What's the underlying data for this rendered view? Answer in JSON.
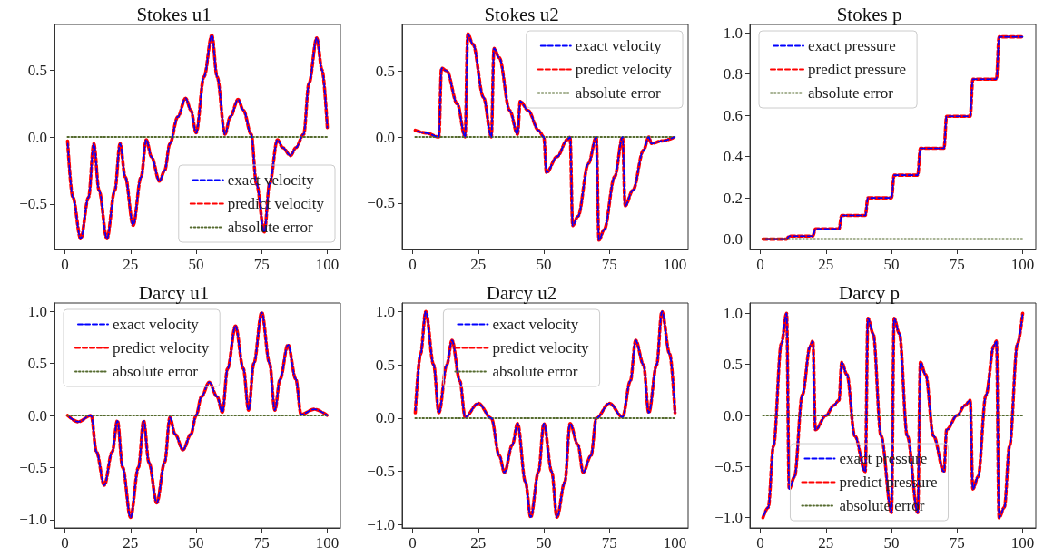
{
  "chart_data": [
    {
      "type": "line",
      "title": "Stokes u1",
      "legend": "bottom right",
      "xlim": [
        -4,
        105
      ],
      "xticks": [
        0,
        25,
        50,
        75,
        100
      ],
      "ylim": [
        -0.84,
        0.84
      ],
      "yticks": [
        {
          "value": -0.5,
          "label": "−0.5"
        },
        {
          "value": 0,
          "label": "0.0"
        },
        {
          "value": 0.5,
          "label": "0.5"
        }
      ],
      "x": [
        1,
        3,
        6,
        9,
        11,
        13,
        16,
        19,
        21,
        23,
        26,
        29,
        31,
        33,
        36,
        38,
        40,
        43,
        46,
        48,
        50,
        53,
        56,
        58,
        61,
        63,
        66,
        68,
        71,
        73,
        76,
        78,
        81,
        83,
        86,
        88,
        91,
        93,
        96,
        98,
        100
      ],
      "series": [
        {
          "name": "exact velocity",
          "color": "#0000ff",
          "line_style": "dashed",
          "values": [
            -0.03,
            -0.45,
            -0.76,
            -0.45,
            -0.05,
            -0.4,
            -0.76,
            -0.4,
            -0.05,
            -0.3,
            -0.66,
            -0.3,
            -0.02,
            -0.15,
            -0.33,
            -0.25,
            -0.05,
            0.15,
            0.29,
            0.2,
            0.03,
            0.45,
            0.76,
            0.45,
            0.02,
            0.15,
            0.28,
            0.2,
            0.02,
            -0.35,
            -0.71,
            -0.35,
            -0.02,
            -0.08,
            -0.14,
            -0.08,
            0.02,
            0.4,
            0.74,
            0.5,
            0.07
          ]
        },
        {
          "name": "predict velocity",
          "color": "#ff0000",
          "line_style": "dashed",
          "values": [
            -0.03,
            -0.45,
            -0.76,
            -0.45,
            -0.05,
            -0.4,
            -0.76,
            -0.4,
            -0.05,
            -0.3,
            -0.66,
            -0.3,
            -0.02,
            -0.15,
            -0.33,
            -0.25,
            -0.05,
            0.15,
            0.29,
            0.2,
            0.03,
            0.45,
            0.76,
            0.45,
            0.02,
            0.15,
            0.28,
            0.2,
            0.02,
            -0.35,
            -0.71,
            -0.35,
            -0.02,
            -0.08,
            -0.14,
            -0.08,
            0.02,
            0.4,
            0.74,
            0.5,
            0.07
          ]
        },
        {
          "name": "absolute error",
          "color": "#556b2f",
          "line_style": "dotted",
          "values": [
            0,
            0,
            0,
            0,
            0,
            0,
            0,
            0,
            0,
            0,
            0,
            0,
            0,
            0,
            0,
            0,
            0,
            0,
            0,
            0,
            0,
            0,
            0,
            0,
            0,
            0,
            0,
            0,
            0,
            0,
            0,
            0,
            0,
            0,
            0,
            0,
            0,
            0,
            0,
            0,
            0
          ]
        }
      ]
    },
    {
      "type": "line",
      "title": "Stokes u2",
      "legend": "top right",
      "xlim": [
        -4,
        105
      ],
      "xticks": [
        0,
        25,
        50,
        75,
        100
      ],
      "ylim": [
        -0.85,
        0.85
      ],
      "yticks": [
        {
          "value": -0.5,
          "label": "−0.5"
        },
        {
          "value": 0,
          "label": "0.0"
        },
        {
          "value": 0.5,
          "label": "0.5"
        }
      ],
      "x": [
        1,
        5,
        10,
        11,
        13,
        17,
        20,
        21,
        23,
        27,
        30,
        31,
        33,
        37,
        40,
        41,
        44,
        48,
        50,
        51,
        55,
        59,
        60,
        61,
        63,
        67,
        70,
        71,
        73,
        77,
        80,
        81,
        84,
        88,
        90,
        91,
        95,
        100
      ],
      "series": [
        {
          "name": "exact velocity",
          "color": "#0000ff",
          "line_style": "dashed",
          "values": [
            0.05,
            0.03,
            0,
            0.52,
            0.5,
            0.25,
            0,
            0.78,
            0.7,
            0.3,
            0,
            0.67,
            0.6,
            0.2,
            0.02,
            0.27,
            0.2,
            0.05,
            0,
            -0.27,
            -0.15,
            -0.02,
            0,
            -0.67,
            -0.6,
            -0.2,
            0,
            -0.78,
            -0.7,
            -0.3,
            0,
            -0.52,
            -0.4,
            -0.1,
            0,
            -0.05,
            -0.03,
            0
          ]
        },
        {
          "name": "predict velocity",
          "color": "#ff0000",
          "line_style": "dashed",
          "values": [
            0.05,
            0.03,
            0,
            0.52,
            0.5,
            0.25,
            0,
            0.78,
            0.7,
            0.3,
            0,
            0.67,
            0.6,
            0.2,
            0.02,
            0.27,
            0.2,
            0.05,
            0,
            -0.27,
            -0.15,
            -0.02,
            0,
            -0.67,
            -0.6,
            -0.2,
            0,
            -0.78,
            -0.7,
            -0.3,
            0,
            -0.52,
            -0.4,
            -0.1,
            0,
            -0.05,
            -0.03,
            0
          ]
        },
        {
          "name": "absolute error",
          "color": "#556b2f",
          "line_style": "dotted",
          "values": [
            0,
            0,
            0,
            0,
            0,
            0,
            0,
            0,
            0,
            0,
            0,
            0,
            0,
            0,
            0,
            0,
            0,
            0,
            0,
            0,
            0,
            0,
            0,
            0,
            0,
            0,
            0,
            0,
            0,
            0,
            0,
            0,
            0,
            0,
            0,
            0,
            0,
            0
          ]
        }
      ]
    },
    {
      "type": "line",
      "title": "Stokes p",
      "legend": "top left",
      "xlim": [
        -4,
        105
      ],
      "xticks": [
        0,
        25,
        50,
        75,
        100
      ],
      "ylim": [
        -0.05,
        1.04
      ],
      "yticks": [
        {
          "value": 0,
          "label": "0.0"
        },
        {
          "value": 0.2,
          "label": "0.2"
        },
        {
          "value": 0.4,
          "label": "0.4"
        },
        {
          "value": 0.6,
          "label": "0.6"
        },
        {
          "value": 0.8,
          "label": "0.8"
        },
        {
          "value": 1,
          "label": "1.0"
        }
      ],
      "x": [
        1,
        10,
        11,
        20,
        21,
        30,
        31,
        40,
        41,
        50,
        51,
        60,
        61,
        70,
        71,
        80,
        81,
        90,
        91,
        100
      ],
      "series": [
        {
          "name": "exact pressure",
          "color": "#0000ff",
          "line_style": "dashed",
          "values": [
            0,
            0,
            0.015,
            0.015,
            0.05,
            0.05,
            0.115,
            0.115,
            0.2,
            0.2,
            0.31,
            0.31,
            0.44,
            0.44,
            0.595,
            0.595,
            0.775,
            0.775,
            0.98,
            0.98
          ]
        },
        {
          "name": "predict pressure",
          "color": "#ff0000",
          "line_style": "dashed",
          "values": [
            0,
            0,
            0.015,
            0.015,
            0.05,
            0.05,
            0.115,
            0.115,
            0.2,
            0.2,
            0.31,
            0.31,
            0.44,
            0.44,
            0.595,
            0.595,
            0.775,
            0.775,
            0.98,
            0.98
          ]
        },
        {
          "name": "absolute error",
          "color": "#556b2f",
          "line_style": "dotted",
          "values": [
            0,
            0,
            0,
            0,
            0,
            0,
            0,
            0,
            0,
            0,
            0,
            0,
            0,
            0,
            0,
            0,
            0,
            0,
            0,
            0
          ]
        }
      ]
    },
    {
      "type": "line",
      "title": "Darcy u1",
      "legend": "top left",
      "xlim": [
        -4,
        105
      ],
      "xticks": [
        0,
        25,
        50,
        75,
        100
      ],
      "ylim": [
        -1.08,
        1.08
      ],
      "yticks": [
        {
          "value": -1,
          "label": "−1.0"
        },
        {
          "value": -0.5,
          "label": "−0.5"
        },
        {
          "value": 0,
          "label": "0.0"
        },
        {
          "value": 0.5,
          "label": "0.5"
        },
        {
          "value": 1,
          "label": "1.0"
        }
      ],
      "x": [
        1,
        5,
        10,
        12,
        15,
        18,
        20,
        22,
        25,
        28,
        30,
        32,
        35,
        38,
        40,
        42,
        45,
        48,
        50,
        52,
        55,
        58,
        60,
        62,
        65,
        68,
        70,
        72,
        75,
        78,
        80,
        82,
        85,
        88,
        90,
        95,
        100
      ],
      "series": [
        {
          "name": "exact velocity",
          "color": "#0000ff",
          "line_style": "dashed",
          "values": [
            0,
            -0.06,
            0,
            -0.35,
            -0.67,
            -0.35,
            -0.05,
            -0.5,
            -0.98,
            -0.5,
            -0.05,
            -0.45,
            -0.84,
            -0.45,
            -0.02,
            -0.18,
            -0.33,
            -0.18,
            0,
            0.18,
            0.32,
            0.18,
            0.03,
            0.45,
            0.86,
            0.45,
            0.05,
            0.5,
            0.99,
            0.5,
            0.05,
            0.35,
            0.68,
            0.35,
            0.01,
            0.06,
            0
          ]
        },
        {
          "name": "predict velocity",
          "color": "#ff0000",
          "line_style": "dashed",
          "values": [
            0,
            -0.06,
            0,
            -0.35,
            -0.67,
            -0.35,
            -0.05,
            -0.5,
            -0.98,
            -0.5,
            -0.05,
            -0.45,
            -0.84,
            -0.45,
            -0.02,
            -0.18,
            -0.33,
            -0.18,
            0,
            0.18,
            0.32,
            0.18,
            0.03,
            0.45,
            0.86,
            0.45,
            0.05,
            0.5,
            0.99,
            0.5,
            0.05,
            0.35,
            0.68,
            0.35,
            0.01,
            0.06,
            0
          ]
        },
        {
          "name": "absolute error",
          "color": "#556b2f",
          "line_style": "dotted",
          "values": [
            0,
            0,
            0,
            0,
            0,
            0,
            0,
            0,
            0,
            0,
            0,
            0,
            0,
            0,
            0,
            0,
            0,
            0,
            0,
            0,
            0,
            0,
            0,
            0,
            0,
            0,
            0,
            0,
            0,
            0,
            0,
            0,
            0,
            0,
            0,
            0,
            0
          ]
        }
      ]
    },
    {
      "type": "line",
      "title": "Darcy u2",
      "legend": "top",
      "xlim": [
        -4,
        105
      ],
      "xticks": [
        0,
        25,
        50,
        75,
        100
      ],
      "ylim": [
        -1.03,
        1.08
      ],
      "yticks": [
        {
          "value": -1,
          "label": "−1.0"
        },
        {
          "value": -0.5,
          "label": "−0.5"
        },
        {
          "value": 0,
          "label": "0.0"
        },
        {
          "value": 0.5,
          "label": "0.5"
        },
        {
          "value": 1,
          "label": "1.0"
        }
      ],
      "x": [
        1,
        3,
        5,
        8,
        10,
        13,
        15,
        18,
        20,
        25,
        30,
        33,
        35,
        38,
        40,
        43,
        45,
        48,
        50,
        53,
        55,
        58,
        60,
        63,
        65,
        68,
        70,
        75,
        80,
        83,
        85,
        88,
        90,
        93,
        95,
        98,
        100
      ],
      "series": [
        {
          "name": "exact velocity",
          "color": "#0000ff",
          "line_style": "dashed",
          "values": [
            0.05,
            0.6,
            1,
            0.5,
            0.05,
            0.5,
            0.73,
            0.35,
            0.01,
            0.14,
            0,
            -0.35,
            -0.51,
            -0.25,
            -0.05,
            -0.6,
            -0.93,
            -0.5,
            -0.05,
            -0.5,
            -0.93,
            -0.6,
            -0.05,
            -0.25,
            -0.51,
            -0.35,
            0,
            0.14,
            0.01,
            0.35,
            0.73,
            0.5,
            0.05,
            0.5,
            1,
            0.6,
            0.05
          ]
        },
        {
          "name": "predict velocity",
          "color": "#ff0000",
          "line_style": "dashed",
          "values": [
            0.05,
            0.6,
            1,
            0.5,
            0.05,
            0.5,
            0.73,
            0.35,
            0.01,
            0.14,
            0,
            -0.35,
            -0.51,
            -0.25,
            -0.05,
            -0.6,
            -0.93,
            -0.5,
            -0.05,
            -0.5,
            -0.93,
            -0.6,
            -0.05,
            -0.25,
            -0.51,
            -0.35,
            0,
            0.14,
            0.01,
            0.35,
            0.73,
            0.5,
            0.05,
            0.5,
            1,
            0.6,
            0.05
          ]
        },
        {
          "name": "absolute error",
          "color": "#556b2f",
          "line_style": "dotted",
          "values": [
            0,
            0,
            0,
            0,
            0,
            0,
            0,
            0,
            0,
            0,
            0,
            0,
            0,
            0,
            0,
            0,
            0,
            0,
            0,
            0,
            0,
            0,
            0,
            0,
            0,
            0,
            0,
            0,
            0,
            0,
            0,
            0,
            0,
            0,
            0,
            0,
            0
          ]
        }
      ]
    },
    {
      "type": "line",
      "title": "Darcy p",
      "legend": "bottom",
      "xlim": [
        -4,
        105
      ],
      "xticks": [
        0,
        25,
        50,
        75,
        100
      ],
      "ylim": [
        -1.1,
        1.1
      ],
      "yticks": [
        {
          "value": -1,
          "label": "−1.0"
        },
        {
          "value": -0.5,
          "label": "−0.5"
        },
        {
          "value": 0,
          "label": "0.0"
        },
        {
          "value": 0.5,
          "label": "0.5"
        },
        {
          "value": 1,
          "label": "1.0"
        }
      ],
      "x": [
        1,
        3,
        5,
        8,
        10,
        11,
        13,
        16,
        19,
        20,
        21,
        25,
        28,
        30,
        31,
        33,
        36,
        40,
        41,
        43,
        46,
        50,
        51,
        53,
        56,
        60,
        61,
        63,
        66,
        70,
        71,
        75,
        78,
        80,
        81,
        83,
        86,
        89,
        90,
        91,
        93,
        95,
        98,
        100
      ],
      "series": [
        {
          "name": "exact pressure",
          "color": "#0000ff",
          "line_style": "dashed",
          "values": [
            -1,
            -0.9,
            -0.3,
            0.7,
            1,
            -0.72,
            -0.6,
            0.2,
            0.68,
            0.73,
            -0.14,
            0,
            0.1,
            0.15,
            0.52,
            0.4,
            -0.2,
            -0.55,
            0.95,
            0.8,
            -0.2,
            -0.95,
            0.95,
            0.8,
            -0.2,
            -0.95,
            0.52,
            0.4,
            -0.2,
            -0.55,
            -0.14,
            0,
            0.1,
            0.15,
            -0.72,
            -0.6,
            0.2,
            0.68,
            0.73,
            -1,
            -0.9,
            -0.3,
            0.7,
            1
          ]
        },
        {
          "name": "predict pressure",
          "color": "#ff0000",
          "line_style": "dashed",
          "values": [
            -1,
            -0.9,
            -0.3,
            0.7,
            1,
            -0.72,
            -0.6,
            0.2,
            0.68,
            0.73,
            -0.14,
            0,
            0.1,
            0.15,
            0.52,
            0.4,
            -0.2,
            -0.55,
            0.95,
            0.8,
            -0.2,
            -0.95,
            0.95,
            0.8,
            -0.2,
            -0.95,
            0.52,
            0.4,
            -0.2,
            -0.55,
            -0.14,
            0,
            0.1,
            0.15,
            -0.72,
            -0.6,
            0.2,
            0.68,
            0.73,
            -1,
            -0.9,
            -0.3,
            0.7,
            1
          ]
        },
        {
          "name": "absolute error",
          "color": "#556b2f",
          "line_style": "dotted",
          "values": [
            0,
            0,
            0,
            0,
            0,
            0,
            0,
            0,
            0,
            0,
            0,
            0,
            0,
            0,
            0,
            0,
            0,
            0,
            0,
            0,
            0,
            0,
            0,
            0,
            0,
            0,
            0,
            0,
            0,
            0,
            0,
            0,
            0,
            0,
            0,
            0,
            0,
            0,
            0,
            0,
            0,
            0,
            0,
            0
          ]
        }
      ]
    }
  ]
}
